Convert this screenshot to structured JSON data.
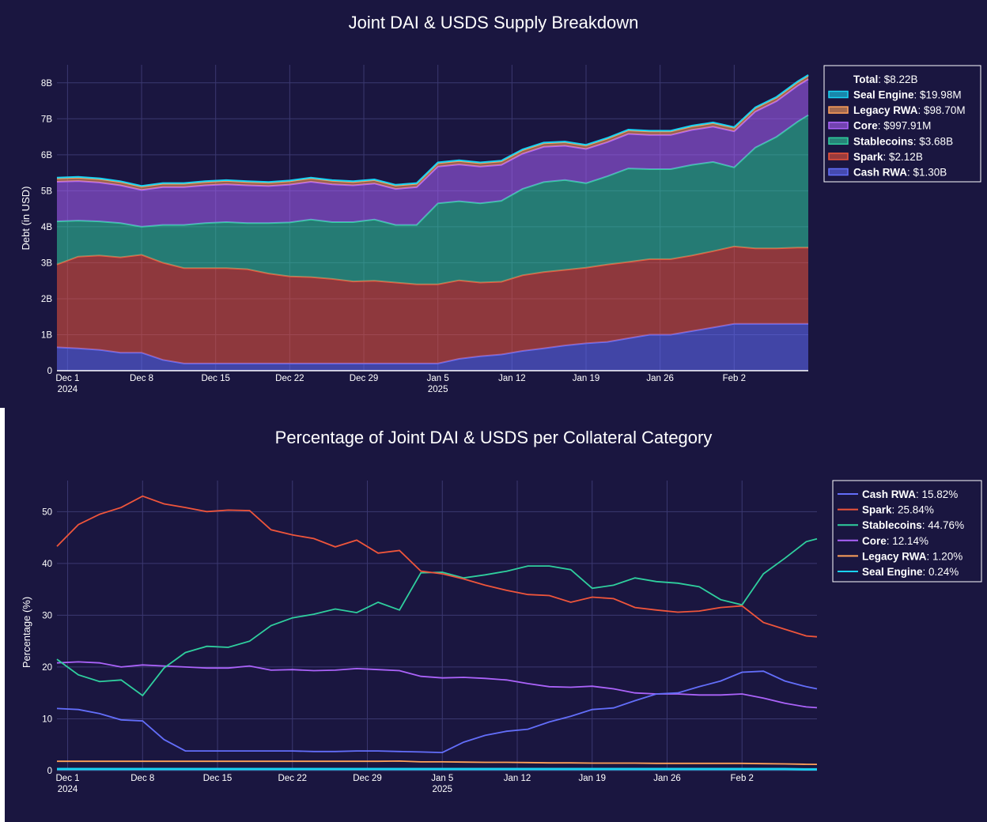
{
  "colors": {
    "background": "#1a1640",
    "grid": "#3b3870",
    "Cash RWA": "#636efa",
    "Spark": "#ef553b",
    "Stablecoins": "#2fcf9e",
    "Core": "#ab63fa",
    "Legacy RWA": "#ffa15a",
    "Seal Engine": "#19d3f3"
  },
  "chart_data": [
    {
      "type": "area",
      "title": "Joint DAI & USDS Supply Breakdown",
      "xlabel": "",
      "ylabel": "Debt (in USD)",
      "x_range": [
        "2024-11-30",
        "2025-02-09"
      ],
      "ylim": [
        0,
        8.5
      ],
      "y_unit": "B",
      "y_ticks": [
        0,
        1,
        2,
        3,
        4,
        5,
        6,
        7,
        8
      ],
      "y_tick_labels": [
        "0",
        "1B",
        "2B",
        "3B",
        "4B",
        "5B",
        "6B",
        "7B",
        "8B"
      ],
      "x_ticks": [
        {
          "date": "2024-12-01",
          "label": "Dec 1",
          "sublabel": "2024"
        },
        {
          "date": "2024-12-08",
          "label": "Dec 8",
          "sublabel": ""
        },
        {
          "date": "2024-12-15",
          "label": "Dec 15",
          "sublabel": ""
        },
        {
          "date": "2024-12-22",
          "label": "Dec 22",
          "sublabel": ""
        },
        {
          "date": "2024-12-29",
          "label": "Dec 29",
          "sublabel": ""
        },
        {
          "date": "2025-01-05",
          "label": "Jan 5",
          "sublabel": "2025"
        },
        {
          "date": "2025-01-12",
          "label": "Jan 12",
          "sublabel": ""
        },
        {
          "date": "2025-01-19",
          "label": "Jan 19",
          "sublabel": ""
        },
        {
          "date": "2025-01-26",
          "label": "Jan 26",
          "sublabel": ""
        },
        {
          "date": "2025-02-02",
          "label": "Feb 2",
          "sublabel": ""
        }
      ],
      "x": [
        "2024-11-30",
        "2024-12-02",
        "2024-12-04",
        "2024-12-06",
        "2024-12-08",
        "2024-12-10",
        "2024-12-12",
        "2024-12-14",
        "2024-12-16",
        "2024-12-18",
        "2024-12-20",
        "2024-12-22",
        "2024-12-24",
        "2024-12-26",
        "2024-12-28",
        "2024-12-30",
        "2025-01-01",
        "2025-01-03",
        "2025-01-05",
        "2025-01-07",
        "2025-01-09",
        "2025-01-11",
        "2025-01-13",
        "2025-01-15",
        "2025-01-17",
        "2025-01-19",
        "2025-01-21",
        "2025-01-23",
        "2025-01-25",
        "2025-01-27",
        "2025-01-29",
        "2025-01-31",
        "2025-02-02",
        "2025-02-04",
        "2025-02-06",
        "2025-02-08",
        "2025-02-09"
      ],
      "legend_header": {
        "label": "Total",
        "value": "$8.22B"
      },
      "legend_position": "top-right",
      "series": [
        {
          "name": "Cash RWA",
          "legend_value": "$1.30B",
          "values": [
            0.65,
            0.62,
            0.58,
            0.5,
            0.5,
            0.3,
            0.2,
            0.2,
            0.2,
            0.2,
            0.2,
            0.2,
            0.2,
            0.2,
            0.2,
            0.2,
            0.2,
            0.2,
            0.2,
            0.33,
            0.4,
            0.45,
            0.55,
            0.62,
            0.7,
            0.76,
            0.8,
            0.9,
            1.0,
            1.0,
            1.1,
            1.2,
            1.3,
            1.3,
            1.3,
            1.3,
            1.3
          ]
        },
        {
          "name": "Spark",
          "legend_value": "$2.12B",
          "values": [
            2.3,
            2.55,
            2.62,
            2.65,
            2.72,
            2.7,
            2.65,
            2.65,
            2.65,
            2.62,
            2.5,
            2.42,
            2.4,
            2.35,
            2.28,
            2.3,
            2.25,
            2.2,
            2.2,
            2.18,
            2.05,
            2.02,
            2.1,
            2.12,
            2.1,
            2.1,
            2.15,
            2.12,
            2.1,
            2.1,
            2.1,
            2.12,
            2.15,
            2.1,
            2.1,
            2.12,
            2.12
          ]
        },
        {
          "name": "Stablecoins",
          "legend_value": "$3.68B",
          "values": [
            1.2,
            1.0,
            0.95,
            0.95,
            0.78,
            1.05,
            1.2,
            1.25,
            1.28,
            1.28,
            1.4,
            1.5,
            1.6,
            1.58,
            1.65,
            1.7,
            1.6,
            1.65,
            2.25,
            2.2,
            2.2,
            2.25,
            2.4,
            2.5,
            2.5,
            2.35,
            2.45,
            2.6,
            2.5,
            2.5,
            2.52,
            2.48,
            2.2,
            2.8,
            3.1,
            3.5,
            3.68
          ]
        },
        {
          "name": "Core",
          "legend_value": "$997.91M",
          "values": [
            1.1,
            1.1,
            1.08,
            1.05,
            1.02,
            1.05,
            1.05,
            1.05,
            1.05,
            1.05,
            1.03,
            1.05,
            1.05,
            1.05,
            1.02,
            1.0,
            1.0,
            1.05,
            1.02,
            1.02,
            1.02,
            1.0,
            0.98,
            0.98,
            0.95,
            0.95,
            0.95,
            0.96,
            0.95,
            0.95,
            0.97,
            0.98,
            1.0,
            1.0,
            0.99,
            1.0,
            0.998
          ]
        },
        {
          "name": "Legacy RWA",
          "legend_value": "$98.70M",
          "values": [
            0.095,
            0.095,
            0.095,
            0.095,
            0.095,
            0.095,
            0.095,
            0.095,
            0.095,
            0.095,
            0.095,
            0.095,
            0.095,
            0.095,
            0.095,
            0.095,
            0.095,
            0.095,
            0.097,
            0.097,
            0.097,
            0.098,
            0.098,
            0.098,
            0.098,
            0.098,
            0.098,
            0.098,
            0.098,
            0.098,
            0.098,
            0.099,
            0.099,
            0.099,
            0.099,
            0.0987,
            0.0987
          ]
        },
        {
          "name": "Seal Engine",
          "legend_value": "$19.98M",
          "values": [
            0.02,
            0.02,
            0.02,
            0.02,
            0.02,
            0.02,
            0.02,
            0.02,
            0.02,
            0.02,
            0.02,
            0.02,
            0.02,
            0.02,
            0.02,
            0.02,
            0.02,
            0.02,
            0.02,
            0.02,
            0.02,
            0.02,
            0.02,
            0.02,
            0.02,
            0.02,
            0.02,
            0.02,
            0.02,
            0.02,
            0.02,
            0.02,
            0.02,
            0.02,
            0.02,
            0.02,
            0.02
          ]
        }
      ]
    },
    {
      "type": "line",
      "title": "Percentage of Joint DAI & USDS per Collateral Category",
      "xlabel": "",
      "ylabel": "Percentage (%)",
      "x_range": [
        "2024-11-30",
        "2025-02-09"
      ],
      "ylim": [
        0,
        56
      ],
      "y_ticks": [
        0,
        10,
        20,
        30,
        40,
        50
      ],
      "y_tick_labels": [
        "0",
        "10",
        "20",
        "30",
        "40",
        "50"
      ],
      "x_ticks": [
        {
          "date": "2024-12-01",
          "label": "Dec 1",
          "sublabel": "2024"
        },
        {
          "date": "2024-12-08",
          "label": "Dec 8",
          "sublabel": ""
        },
        {
          "date": "2024-12-15",
          "label": "Dec 15",
          "sublabel": ""
        },
        {
          "date": "2024-12-22",
          "label": "Dec 22",
          "sublabel": ""
        },
        {
          "date": "2024-12-29",
          "label": "Dec 29",
          "sublabel": ""
        },
        {
          "date": "2025-01-05",
          "label": "Jan 5",
          "sublabel": "2025"
        },
        {
          "date": "2025-01-12",
          "label": "Jan 12",
          "sublabel": ""
        },
        {
          "date": "2025-01-19",
          "label": "Jan 19",
          "sublabel": ""
        },
        {
          "date": "2025-01-26",
          "label": "Jan 26",
          "sublabel": ""
        },
        {
          "date": "2025-02-02",
          "label": "Feb 2",
          "sublabel": ""
        }
      ],
      "x": [
        "2024-11-30",
        "2024-12-02",
        "2024-12-04",
        "2024-12-06",
        "2024-12-08",
        "2024-12-10",
        "2024-12-12",
        "2024-12-14",
        "2024-12-16",
        "2024-12-18",
        "2024-12-20",
        "2024-12-22",
        "2024-12-24",
        "2024-12-26",
        "2024-12-28",
        "2024-12-30",
        "2025-01-01",
        "2025-01-03",
        "2025-01-05",
        "2025-01-07",
        "2025-01-09",
        "2025-01-11",
        "2025-01-13",
        "2025-01-15",
        "2025-01-17",
        "2025-01-19",
        "2025-01-21",
        "2025-01-23",
        "2025-01-25",
        "2025-01-27",
        "2025-01-29",
        "2025-01-31",
        "2025-02-02",
        "2025-02-04",
        "2025-02-06",
        "2025-02-08",
        "2025-02-09"
      ],
      "legend_position": "top-right",
      "series": [
        {
          "name": "Cash RWA",
          "legend_value": "15.82%",
          "values": [
            12.0,
            11.8,
            11.0,
            9.8,
            9.6,
            6.0,
            3.8,
            3.8,
            3.8,
            3.8,
            3.8,
            3.8,
            3.7,
            3.7,
            3.8,
            3.8,
            3.7,
            3.6,
            3.5,
            5.5,
            6.8,
            7.6,
            8.0,
            9.4,
            10.5,
            11.8,
            12.1,
            13.5,
            14.8,
            15.0,
            16.2,
            17.3,
            19.0,
            19.2,
            17.3,
            16.2,
            15.8
          ]
        },
        {
          "name": "Spark",
          "legend_value": "25.84%",
          "values": [
            43.3,
            47.5,
            49.5,
            50.8,
            53.0,
            51.5,
            50.8,
            50.0,
            50.3,
            50.2,
            46.5,
            45.5,
            44.8,
            43.2,
            44.5,
            42.0,
            42.5,
            38.5,
            38.0,
            37.0,
            35.8,
            34.8,
            34.0,
            33.8,
            32.5,
            33.5,
            33.2,
            31.5,
            31.0,
            30.6,
            30.8,
            31.5,
            31.8,
            28.6,
            27.3,
            26.0,
            25.84
          ]
        },
        {
          "name": "Stablecoins",
          "legend_value": "44.76%",
          "values": [
            21.5,
            18.5,
            17.2,
            17.5,
            14.5,
            19.8,
            22.8,
            24.0,
            23.8,
            25.0,
            28.0,
            29.5,
            30.2,
            31.2,
            30.5,
            32.5,
            31.0,
            38.2,
            38.3,
            37.2,
            37.8,
            38.5,
            39.5,
            39.5,
            38.8,
            35.2,
            35.8,
            37.2,
            36.5,
            36.2,
            35.5,
            33.0,
            32.0,
            38.0,
            41.0,
            44.2,
            44.76
          ]
        },
        {
          "name": "Core",
          "legend_value": "12.14%",
          "values": [
            20.8,
            21.0,
            20.8,
            20.0,
            20.4,
            20.2,
            20.0,
            19.8,
            19.8,
            20.2,
            19.4,
            19.5,
            19.3,
            19.4,
            19.7,
            19.5,
            19.3,
            18.2,
            17.9,
            18.0,
            17.8,
            17.5,
            16.8,
            16.2,
            16.1,
            16.3,
            15.8,
            15.0,
            14.8,
            14.8,
            14.6,
            14.6,
            14.8,
            14.0,
            13.0,
            12.3,
            12.14
          ]
        },
        {
          "name": "Legacy RWA",
          "legend_value": "1.20%",
          "values": [
            1.8,
            1.8,
            1.8,
            1.8,
            1.8,
            1.8,
            1.8,
            1.8,
            1.8,
            1.8,
            1.8,
            1.8,
            1.8,
            1.8,
            1.8,
            1.8,
            1.85,
            1.7,
            1.7,
            1.65,
            1.6,
            1.6,
            1.55,
            1.5,
            1.5,
            1.45,
            1.45,
            1.45,
            1.4,
            1.4,
            1.4,
            1.4,
            1.4,
            1.35,
            1.3,
            1.22,
            1.2
          ]
        },
        {
          "name": "Seal Engine",
          "legend_value": "0.24%",
          "values": [
            0.3,
            0.3,
            0.3,
            0.3,
            0.3,
            0.3,
            0.3,
            0.3,
            0.3,
            0.3,
            0.3,
            0.3,
            0.3,
            0.3,
            0.3,
            0.3,
            0.3,
            0.3,
            0.3,
            0.3,
            0.3,
            0.3,
            0.3,
            0.3,
            0.3,
            0.3,
            0.3,
            0.3,
            0.3,
            0.3,
            0.3,
            0.3,
            0.3,
            0.3,
            0.3,
            0.25,
            0.24
          ]
        }
      ]
    }
  ]
}
